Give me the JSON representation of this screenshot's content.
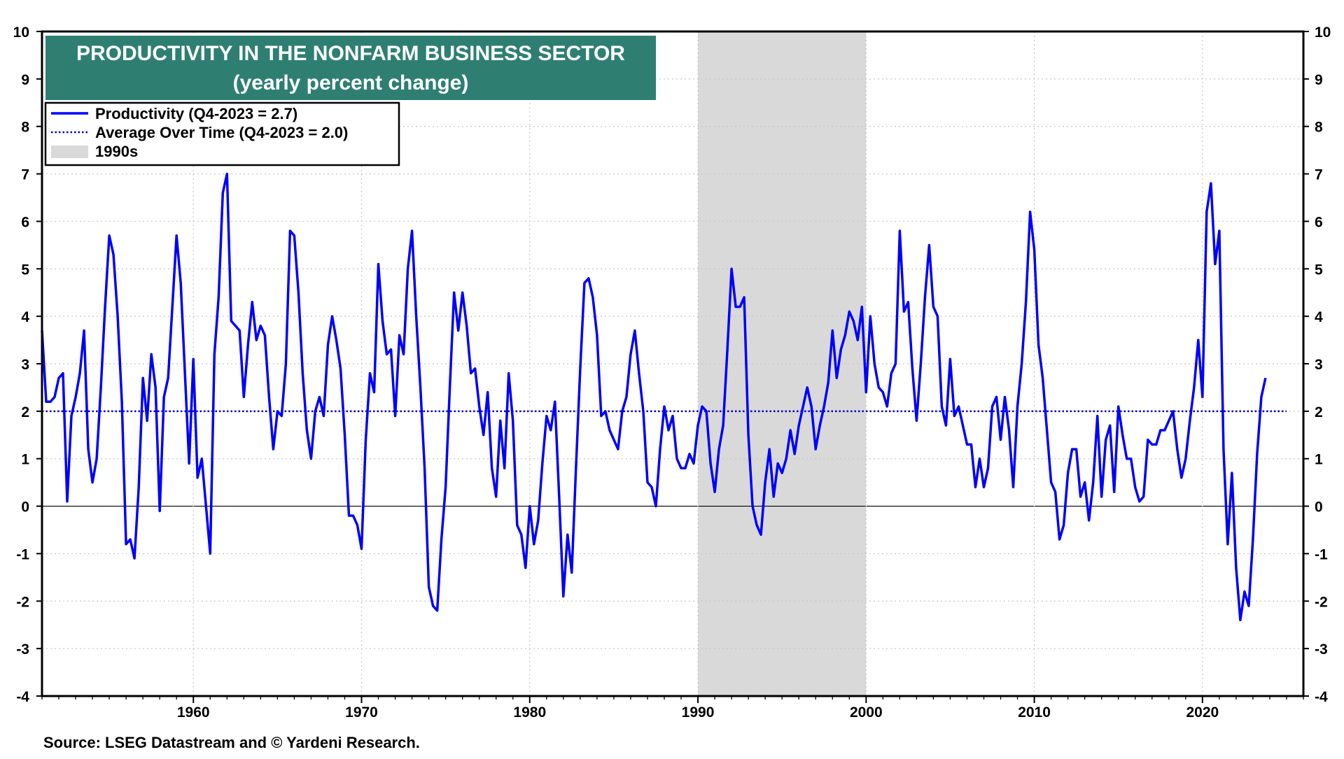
{
  "chart_data": {
    "type": "line",
    "title": "PRODUCTIVITY IN THE NONFARM BUSINESS SECTOR",
    "subtitle": "(yearly percent change)",
    "source": "Source: LSEG Datastream and © Yardeni Research.",
    "xlim": [
      1951,
      2026
    ],
    "ylim": [
      -4,
      10
    ],
    "x_ticks": [
      1960,
      1970,
      1980,
      1990,
      2000,
      2010,
      2020
    ],
    "x_tick_labels": [
      "1960",
      "1970",
      "1980",
      "1990",
      "2000",
      "2010",
      "2020"
    ],
    "y_ticks": [
      -4,
      -3,
      -2,
      -1,
      0,
      1,
      2,
      3,
      4,
      5,
      6,
      7,
      8,
      9,
      10
    ],
    "y_tick_labels": [
      "-4",
      "-3",
      "-2",
      "-1",
      "0",
      "1",
      "2",
      "3",
      "4",
      "5",
      "6",
      "7",
      "8",
      "9",
      "10"
    ],
    "grid": true,
    "legend_position": "top-left",
    "legend": [
      {
        "label": "Productivity (Q4-2023 = 2.7)",
        "style": "solid",
        "color": "#0000ff"
      },
      {
        "label": "Average Over Time (Q4-2023 = 2.0)",
        "style": "dotted",
        "color": "#0000cc"
      },
      {
        "label": "1990s",
        "style": "shade",
        "color": "#d9d9d9"
      }
    ],
    "shaded_regions": [
      {
        "label": "1990s",
        "x_start": 1990,
        "x_end": 2000
      }
    ],
    "average_line": {
      "name": "Average Over Time",
      "value": 2.0
    },
    "series": [
      {
        "name": "Productivity",
        "color": "#0000ff",
        "points": [
          [
            1951.0,
            3.7
          ],
          [
            1951.25,
            2.2
          ],
          [
            1951.5,
            2.2
          ],
          [
            1951.75,
            2.3
          ],
          [
            1952.0,
            2.7
          ],
          [
            1952.25,
            2.8
          ],
          [
            1952.5,
            0.1
          ],
          [
            1952.75,
            1.9
          ],
          [
            1953.0,
            2.3
          ],
          [
            1953.25,
            2.8
          ],
          [
            1953.5,
            3.7
          ],
          [
            1953.75,
            1.2
          ],
          [
            1954.0,
            0.5
          ],
          [
            1954.25,
            1.0
          ],
          [
            1954.5,
            2.5
          ],
          [
            1954.75,
            4.2
          ],
          [
            1955.0,
            5.7
          ],
          [
            1955.25,
            5.3
          ],
          [
            1955.5,
            4.0
          ],
          [
            1955.75,
            2.2
          ],
          [
            1956.0,
            -0.8
          ],
          [
            1956.25,
            -0.7
          ],
          [
            1956.5,
            -1.1
          ],
          [
            1956.75,
            0.4
          ],
          [
            1957.0,
            2.7
          ],
          [
            1957.25,
            1.8
          ],
          [
            1957.5,
            3.2
          ],
          [
            1957.75,
            2.5
          ],
          [
            1958.0,
            -0.1
          ],
          [
            1958.25,
            2.3
          ],
          [
            1958.5,
            2.7
          ],
          [
            1958.75,
            4.2
          ],
          [
            1959.0,
            5.7
          ],
          [
            1959.25,
            4.7
          ],
          [
            1959.5,
            2.8
          ],
          [
            1959.75,
            0.9
          ],
          [
            1960.0,
            3.1
          ],
          [
            1960.25,
            0.6
          ],
          [
            1960.5,
            1.0
          ],
          [
            1960.75,
            0.0
          ],
          [
            1961.0,
            -1.0
          ],
          [
            1961.25,
            3.2
          ],
          [
            1961.5,
            4.4
          ],
          [
            1961.75,
            6.6
          ],
          [
            1962.0,
            7.0
          ],
          [
            1962.25,
            3.9
          ],
          [
            1962.5,
            3.8
          ],
          [
            1962.75,
            3.7
          ],
          [
            1963.0,
            2.3
          ],
          [
            1963.25,
            3.4
          ],
          [
            1963.5,
            4.3
          ],
          [
            1963.75,
            3.5
          ],
          [
            1964.0,
            3.8
          ],
          [
            1964.25,
            3.6
          ],
          [
            1964.5,
            2.3
          ],
          [
            1964.75,
            1.2
          ],
          [
            1965.0,
            2.0
          ],
          [
            1965.25,
            1.9
          ],
          [
            1965.5,
            3.0
          ],
          [
            1965.75,
            5.8
          ],
          [
            1966.0,
            5.7
          ],
          [
            1966.25,
            4.5
          ],
          [
            1966.5,
            2.8
          ],
          [
            1966.75,
            1.6
          ],
          [
            1967.0,
            1.0
          ],
          [
            1967.25,
            2.0
          ],
          [
            1967.5,
            2.3
          ],
          [
            1967.75,
            1.9
          ],
          [
            1968.0,
            3.4
          ],
          [
            1968.25,
            4.0
          ],
          [
            1968.5,
            3.5
          ],
          [
            1968.75,
            2.9
          ],
          [
            1969.0,
            1.5
          ],
          [
            1969.25,
            -0.2
          ],
          [
            1969.5,
            -0.2
          ],
          [
            1969.75,
            -0.4
          ],
          [
            1970.0,
            -0.9
          ],
          [
            1970.25,
            1.4
          ],
          [
            1970.5,
            2.8
          ],
          [
            1970.75,
            2.4
          ],
          [
            1971.0,
            5.1
          ],
          [
            1971.25,
            3.9
          ],
          [
            1971.5,
            3.2
          ],
          [
            1971.75,
            3.3
          ],
          [
            1972.0,
            1.9
          ],
          [
            1972.25,
            3.6
          ],
          [
            1972.5,
            3.2
          ],
          [
            1972.75,
            5.0
          ],
          [
            1973.0,
            5.8
          ],
          [
            1973.25,
            4.0
          ],
          [
            1973.5,
            2.5
          ],
          [
            1973.75,
            0.8
          ],
          [
            1974.0,
            -1.7
          ],
          [
            1974.25,
            -2.1
          ],
          [
            1974.5,
            -2.2
          ],
          [
            1974.75,
            -0.7
          ],
          [
            1975.0,
            0.4
          ],
          [
            1975.25,
            2.5
          ],
          [
            1975.5,
            4.5
          ],
          [
            1975.75,
            3.7
          ],
          [
            1976.0,
            4.5
          ],
          [
            1976.25,
            3.8
          ],
          [
            1976.5,
            2.8
          ],
          [
            1976.75,
            2.9
          ],
          [
            1977.0,
            2.1
          ],
          [
            1977.25,
            1.5
          ],
          [
            1977.5,
            2.4
          ],
          [
            1977.75,
            0.8
          ],
          [
            1978.0,
            0.2
          ],
          [
            1978.25,
            1.8
          ],
          [
            1978.5,
            0.8
          ],
          [
            1978.75,
            2.8
          ],
          [
            1979.0,
            1.8
          ],
          [
            1979.25,
            -0.4
          ],
          [
            1979.5,
            -0.6
          ],
          [
            1979.75,
            -1.3
          ],
          [
            1980.0,
            0.0
          ],
          [
            1980.25,
            -0.8
          ],
          [
            1980.5,
            -0.3
          ],
          [
            1980.75,
            0.9
          ],
          [
            1981.0,
            1.9
          ],
          [
            1981.25,
            1.6
          ],
          [
            1981.5,
            2.2
          ],
          [
            1981.75,
            0.2
          ],
          [
            1982.0,
            -1.9
          ],
          [
            1982.25,
            -0.6
          ],
          [
            1982.5,
            -1.4
          ],
          [
            1982.75,
            0.8
          ],
          [
            1983.0,
            2.9
          ],
          [
            1983.25,
            4.7
          ],
          [
            1983.5,
            4.8
          ],
          [
            1983.75,
            4.4
          ],
          [
            1984.0,
            3.6
          ],
          [
            1984.25,
            1.9
          ],
          [
            1984.5,
            2.0
          ],
          [
            1984.75,
            1.6
          ],
          [
            1985.0,
            1.4
          ],
          [
            1985.25,
            1.2
          ],
          [
            1985.5,
            2.0
          ],
          [
            1985.75,
            2.3
          ],
          [
            1986.0,
            3.2
          ],
          [
            1986.25,
            3.7
          ],
          [
            1986.5,
            2.8
          ],
          [
            1986.75,
            2.0
          ],
          [
            1987.0,
            0.5
          ],
          [
            1987.25,
            0.4
          ],
          [
            1987.5,
            0.0
          ],
          [
            1987.75,
            1.2
          ],
          [
            1988.0,
            2.1
          ],
          [
            1988.25,
            1.6
          ],
          [
            1988.5,
            1.9
          ],
          [
            1988.75,
            1.0
          ],
          [
            1989.0,
            0.8
          ],
          [
            1989.25,
            0.8
          ],
          [
            1989.5,
            1.1
          ],
          [
            1989.75,
            0.9
          ],
          [
            1990.0,
            1.7
          ],
          [
            1990.25,
            2.1
          ],
          [
            1990.5,
            2.0
          ],
          [
            1990.75,
            0.9
          ],
          [
            1991.0,
            0.3
          ],
          [
            1991.25,
            1.2
          ],
          [
            1991.5,
            1.7
          ],
          [
            1991.75,
            3.3
          ],
          [
            1992.0,
            5.0
          ],
          [
            1992.25,
            4.2
          ],
          [
            1992.5,
            4.2
          ],
          [
            1992.75,
            4.4
          ],
          [
            1993.0,
            1.5
          ],
          [
            1993.25,
            0.0
          ],
          [
            1993.5,
            -0.4
          ],
          [
            1993.75,
            -0.6
          ],
          [
            1994.0,
            0.5
          ],
          [
            1994.25,
            1.2
          ],
          [
            1994.5,
            0.2
          ],
          [
            1994.75,
            0.9
          ],
          [
            1995.0,
            0.7
          ],
          [
            1995.25,
            1.0
          ],
          [
            1995.5,
            1.6
          ],
          [
            1995.75,
            1.1
          ],
          [
            1996.0,
            1.7
          ],
          [
            1996.25,
            2.1
          ],
          [
            1996.5,
            2.5
          ],
          [
            1996.75,
            2.1
          ],
          [
            1997.0,
            1.2
          ],
          [
            1997.25,
            1.7
          ],
          [
            1997.5,
            2.1
          ],
          [
            1997.75,
            2.6
          ],
          [
            1998.0,
            3.7
          ],
          [
            1998.25,
            2.7
          ],
          [
            1998.5,
            3.3
          ],
          [
            1998.75,
            3.6
          ],
          [
            1999.0,
            4.1
          ],
          [
            1999.25,
            3.9
          ],
          [
            1999.5,
            3.5
          ],
          [
            1999.75,
            4.2
          ],
          [
            2000.0,
            2.4
          ],
          [
            2000.25,
            4.0
          ],
          [
            2000.5,
            3.0
          ],
          [
            2000.75,
            2.5
          ],
          [
            2001.0,
            2.4
          ],
          [
            2001.25,
            2.1
          ],
          [
            2001.5,
            2.8
          ],
          [
            2001.75,
            3.0
          ],
          [
            2002.0,
            5.8
          ],
          [
            2002.25,
            4.1
          ],
          [
            2002.5,
            4.3
          ],
          [
            2002.75,
            2.9
          ],
          [
            2003.0,
            1.8
          ],
          [
            2003.25,
            3.0
          ],
          [
            2003.5,
            4.4
          ],
          [
            2003.75,
            5.5
          ],
          [
            2004.0,
            4.2
          ],
          [
            2004.25,
            4.0
          ],
          [
            2004.5,
            2.1
          ],
          [
            2004.75,
            1.7
          ],
          [
            2005.0,
            3.1
          ],
          [
            2005.25,
            1.9
          ],
          [
            2005.5,
            2.1
          ],
          [
            2005.75,
            1.7
          ],
          [
            2006.0,
            1.3
          ],
          [
            2006.25,
            1.3
          ],
          [
            2006.5,
            0.4
          ],
          [
            2006.75,
            1.0
          ],
          [
            2007.0,
            0.4
          ],
          [
            2007.25,
            0.8
          ],
          [
            2007.5,
            2.1
          ],
          [
            2007.75,
            2.3
          ],
          [
            2008.0,
            1.4
          ],
          [
            2008.25,
            2.3
          ],
          [
            2008.5,
            1.6
          ],
          [
            2008.75,
            0.4
          ],
          [
            2009.0,
            2.1
          ],
          [
            2009.25,
            3.0
          ],
          [
            2009.5,
            4.3
          ],
          [
            2009.75,
            6.2
          ],
          [
            2010.0,
            5.4
          ],
          [
            2010.25,
            3.4
          ],
          [
            2010.5,
            2.7
          ],
          [
            2010.75,
            1.6
          ],
          [
            2011.0,
            0.5
          ],
          [
            2011.25,
            0.3
          ],
          [
            2011.5,
            -0.7
          ],
          [
            2011.75,
            -0.4
          ],
          [
            2012.0,
            0.7
          ],
          [
            2012.25,
            1.2
          ],
          [
            2012.5,
            1.2
          ],
          [
            2012.75,
            0.2
          ],
          [
            2013.0,
            0.5
          ],
          [
            2013.25,
            -0.3
          ],
          [
            2013.5,
            0.5
          ],
          [
            2013.75,
            1.9
          ],
          [
            2014.0,
            0.2
          ],
          [
            2014.25,
            1.4
          ],
          [
            2014.5,
            1.7
          ],
          [
            2014.75,
            0.3
          ],
          [
            2015.0,
            2.1
          ],
          [
            2015.25,
            1.5
          ],
          [
            2015.5,
            1.0
          ],
          [
            2015.75,
            1.0
          ],
          [
            2016.0,
            0.4
          ],
          [
            2016.25,
            0.1
          ],
          [
            2016.5,
            0.2
          ],
          [
            2016.75,
            1.4
          ],
          [
            2017.0,
            1.3
          ],
          [
            2017.25,
            1.3
          ],
          [
            2017.5,
            1.6
          ],
          [
            2017.75,
            1.6
          ],
          [
            2018.0,
            1.8
          ],
          [
            2018.25,
            2.0
          ],
          [
            2018.5,
            1.2
          ],
          [
            2018.75,
            0.6
          ],
          [
            2019.0,
            1.0
          ],
          [
            2019.25,
            1.8
          ],
          [
            2019.5,
            2.5
          ],
          [
            2019.75,
            3.5
          ],
          [
            2020.0,
            2.3
          ],
          [
            2020.25,
            6.2
          ],
          [
            2020.5,
            6.8
          ],
          [
            2020.75,
            5.1
          ],
          [
            2021.0,
            5.8
          ],
          [
            2021.25,
            1.2
          ],
          [
            2021.5,
            -0.8
          ],
          [
            2021.75,
            0.7
          ],
          [
            2022.0,
            -1.3
          ],
          [
            2022.25,
            -2.4
          ],
          [
            2022.5,
            -1.8
          ],
          [
            2022.75,
            -2.1
          ],
          [
            2023.0,
            -0.7
          ],
          [
            2023.25,
            1.1
          ],
          [
            2023.5,
            2.3
          ],
          [
            2023.75,
            2.7
          ]
        ]
      }
    ]
  }
}
